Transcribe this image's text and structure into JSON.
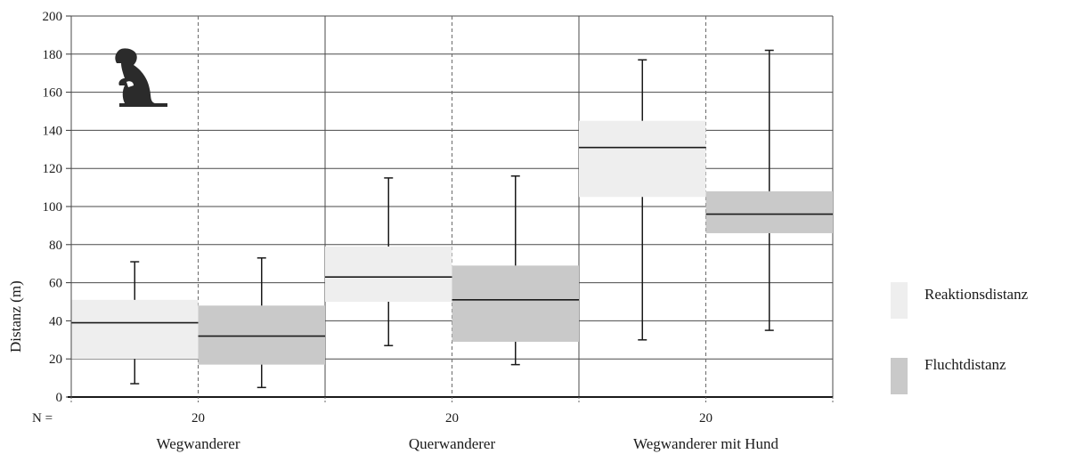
{
  "chart_data": {
    "type": "bar",
    "subtype": "box-range",
    "ylabel": "Distanz (m)",
    "ylim": [
      0,
      200
    ],
    "yticks": [
      0,
      20,
      40,
      60,
      80,
      100,
      120,
      140,
      160,
      180,
      200
    ],
    "grid": true,
    "n_label": "N =",
    "categories": [
      {
        "label": "Wegwanderer",
        "n": "20"
      },
      {
        "label": "Querwanderer",
        "n": "20"
      },
      {
        "label": "Wegwanderer mit Hund",
        "n": "20"
      }
    ],
    "series": [
      {
        "name": "Reaktionsdistanz",
        "color": "#eeeeee",
        "values": [
          {
            "min": 7,
            "q1": 20,
            "median": 39,
            "q3": 51,
            "max": 71
          },
          {
            "min": 27,
            "q1": 50,
            "median": 63,
            "q3": 79,
            "max": 115
          },
          {
            "min": 30,
            "q1": 105,
            "median": 131,
            "q3": 145,
            "max": 177
          }
        ]
      },
      {
        "name": "Fluchtdistanz",
        "color": "#c9c9c9",
        "values": [
          {
            "min": 5,
            "q1": 17,
            "median": 32,
            "q3": 48,
            "max": 73
          },
          {
            "min": 17,
            "q1": 29,
            "median": 51,
            "q3": 69,
            "max": 116
          },
          {
            "min": 35,
            "q1": 86,
            "median": 96,
            "q3": 108,
            "max": 182
          }
        ]
      }
    ],
    "legend": {
      "placement": "right"
    },
    "annotation_icon": "marmot-icon"
  }
}
